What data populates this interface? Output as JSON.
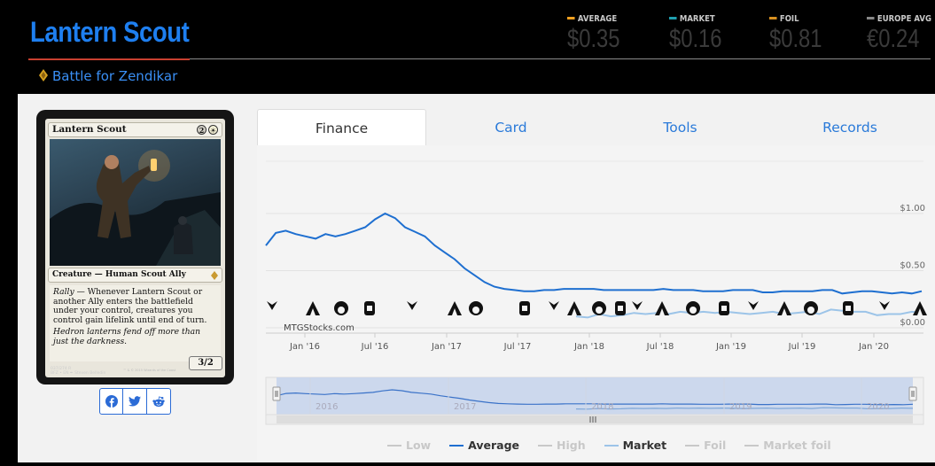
{
  "card": {
    "title": "Lantern Scout",
    "set_name": "Battle for Zendikar",
    "name_on_card": "Lantern Scout",
    "mana_cost": [
      "2",
      "☀"
    ],
    "type_line": "Creature — Human Scout Ally",
    "rules_text": "Rally — Whenever Lantern Scout or another Ally enters the battlefield under your control, creatures you control gain lifelink until end of turn.",
    "flavor_text": "Hedron lanterns fend off more than just the darkness.",
    "power_toughness": "3/2",
    "collector_line_1": "037/274 R",
    "collector_line_2": "BFZ • EN  ✒ Steven Belledin",
    "copyright": "™ & © 2015 Wizards of the Coast"
  },
  "prices": [
    {
      "label": "AVERAGE",
      "value": "$0.35",
      "color": "#f0a020"
    },
    {
      "label": "MARKET",
      "value": "$0.16",
      "color": "#20a0b0"
    },
    {
      "label": "FOIL",
      "value": "$0.81",
      "color": "#d89020"
    },
    {
      "label": "EUROPE AVG",
      "value": "€0.24",
      "color": "#888888"
    }
  ],
  "share": [
    {
      "name": "facebook-icon",
      "color": "#2b6bd6"
    },
    {
      "name": "twitter-icon",
      "color": "#2b6bd6"
    },
    {
      "name": "reddit-icon",
      "color": "#2b6bd6"
    }
  ],
  "tabs": [
    {
      "label": "Finance",
      "active": true
    },
    {
      "label": "Card",
      "active": false
    },
    {
      "label": "Tools",
      "active": false
    },
    {
      "label": "Records",
      "active": false
    }
  ],
  "chart_data": {
    "type": "line",
    "credit": "MTGStocks.com",
    "y_ticks": [
      "$1.00",
      "$0.50",
      "$0.00"
    ],
    "ylim": [
      0,
      1.0
    ],
    "x_ticks": [
      "Jan '16",
      "Jul '16",
      "Jan '17",
      "Jul '17",
      "Jan '18",
      "Jul '18",
      "Jan '19",
      "Jul '19",
      "Jan '20"
    ],
    "navigator_ticks": [
      "2016",
      "2017",
      "2018",
      "2019",
      "2020"
    ],
    "series": [
      {
        "name": "Average",
        "color": "#1e6fd0",
        "values": [
          0.72,
          0.83,
          0.85,
          0.82,
          0.8,
          0.78,
          0.82,
          0.8,
          0.82,
          0.85,
          0.88,
          0.95,
          1.0,
          0.96,
          0.88,
          0.84,
          0.8,
          0.72,
          0.66,
          0.6,
          0.52,
          0.46,
          0.4,
          0.36,
          0.34,
          0.33,
          0.32,
          0.32,
          0.33,
          0.33,
          0.34,
          0.34,
          0.34,
          0.34,
          0.33,
          0.33,
          0.33,
          0.33,
          0.33,
          0.33,
          0.34,
          0.33,
          0.33,
          0.33,
          0.32,
          0.32,
          0.32,
          0.33,
          0.33,
          0.33,
          0.31,
          0.31,
          0.32,
          0.32,
          0.32,
          0.32,
          0.33,
          0.33,
          0.3,
          0.31,
          0.32,
          0.32,
          0.31,
          0.3,
          0.31,
          0.3,
          0.32
        ]
      },
      {
        "name": "Market",
        "color": "#9cc4e8",
        "values": [
          0.1,
          0.09,
          0.12,
          0.1,
          0.11,
          0.13,
          0.12,
          0.13,
          0.12,
          0.14,
          0.13,
          0.14,
          0.13,
          0.14,
          0.13,
          0.12,
          0.13,
          0.14,
          0.12,
          0.13,
          0.14,
          0.12,
          0.16,
          0.15,
          0.14,
          0.14,
          0.11,
          0.12,
          0.12,
          0.14,
          0.13
        ]
      }
    ],
    "legend": [
      {
        "label": "Low",
        "color": "#c8c8c8",
        "active": false
      },
      {
        "label": "Average",
        "color": "#1e6fd0",
        "active": true
      },
      {
        "label": "High",
        "color": "#c8c8c8",
        "active": false
      },
      {
        "label": "Market",
        "color": "#9cc4e8",
        "active": true
      },
      {
        "label": "Foil",
        "color": "#c8c8c8",
        "active": false
      },
      {
        "label": "Market foil",
        "color": "#c8c8c8",
        "active": false
      }
    ]
  }
}
